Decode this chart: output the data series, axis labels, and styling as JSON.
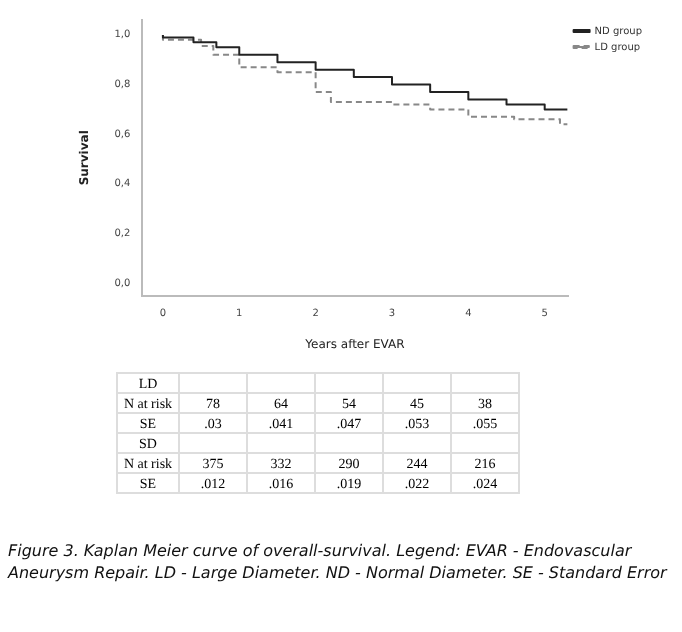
{
  "chart_data": [
    {
      "type": "step",
      "xlabel": "Years after EVAR",
      "ylabel": "Survival",
      "legend": "top right",
      "grid": false,
      "xlim": [
        -0.27,
        5.3
      ],
      "xticks": [
        0,
        1,
        2,
        3,
        4,
        5
      ],
      "ylim": [
        -0.05,
        1.06
      ],
      "yticks": [
        {
          "value": 0,
          "label": "0,0"
        },
        {
          "value": 0.2,
          "label": "0,2"
        },
        {
          "value": 0.4,
          "label": "0,4"
        },
        {
          "value": 0.6,
          "label": "0,6"
        },
        {
          "value": 0.8,
          "label": "0,8"
        },
        {
          "value": 1,
          "label": "1,0"
        }
      ],
      "series": [
        {
          "name": "ND group",
          "color": "#222222",
          "line_style": "solid",
          "x": [
            0,
            0.4,
            0.7,
            1,
            1.5,
            2,
            2.5,
            3,
            3.5,
            4,
            4.5,
            5,
            5.3
          ],
          "values": [
            1,
            0.99,
            0.97,
            0.95,
            0.92,
            0.89,
            0.86,
            0.83,
            0.8,
            0.77,
            0.74,
            0.72,
            0.7
          ]
        },
        {
          "name": "LD group",
          "color": "#888888",
          "line_style": "dashed",
          "x": [
            0,
            0.5,
            0.66,
            1,
            1.5,
            2,
            2.2,
            3,
            3.5,
            4,
            4.6,
            5.2,
            5.3
          ],
          "values": [
            1,
            0.98,
            0.955,
            0.92,
            0.87,
            0.85,
            0.77,
            0.73,
            0.72,
            0.7,
            0.67,
            0.66,
            0.64
          ]
        }
      ]
    },
    {
      "type": "other",
      "y_categories": [
        "LD",
        "N at risk",
        "SE",
        "SD",
        "N at risk",
        "SE"
      ],
      "cell_labels": [
        [
          null,
          null,
          null,
          null,
          null
        ],
        [
          "78",
          "64",
          "54",
          "45",
          "38"
        ],
        [
          ".03",
          ".041",
          ".047",
          ".053",
          ".055"
        ],
        [
          null,
          null,
          null,
          null,
          null
        ],
        [
          "375",
          "332",
          "290",
          "244",
          "216"
        ],
        [
          ".012",
          ".016",
          ".019",
          ".022",
          ".024"
        ]
      ],
      "annotations": [
        "Figure 3.  Kaplan Meier curve of overall-survival. Legend: EVAR - Endovascular Aneurysm Repair. LD - Large Diameter. ND - Normal Diameter. SE - Standard Error"
      ]
    }
  ]
}
